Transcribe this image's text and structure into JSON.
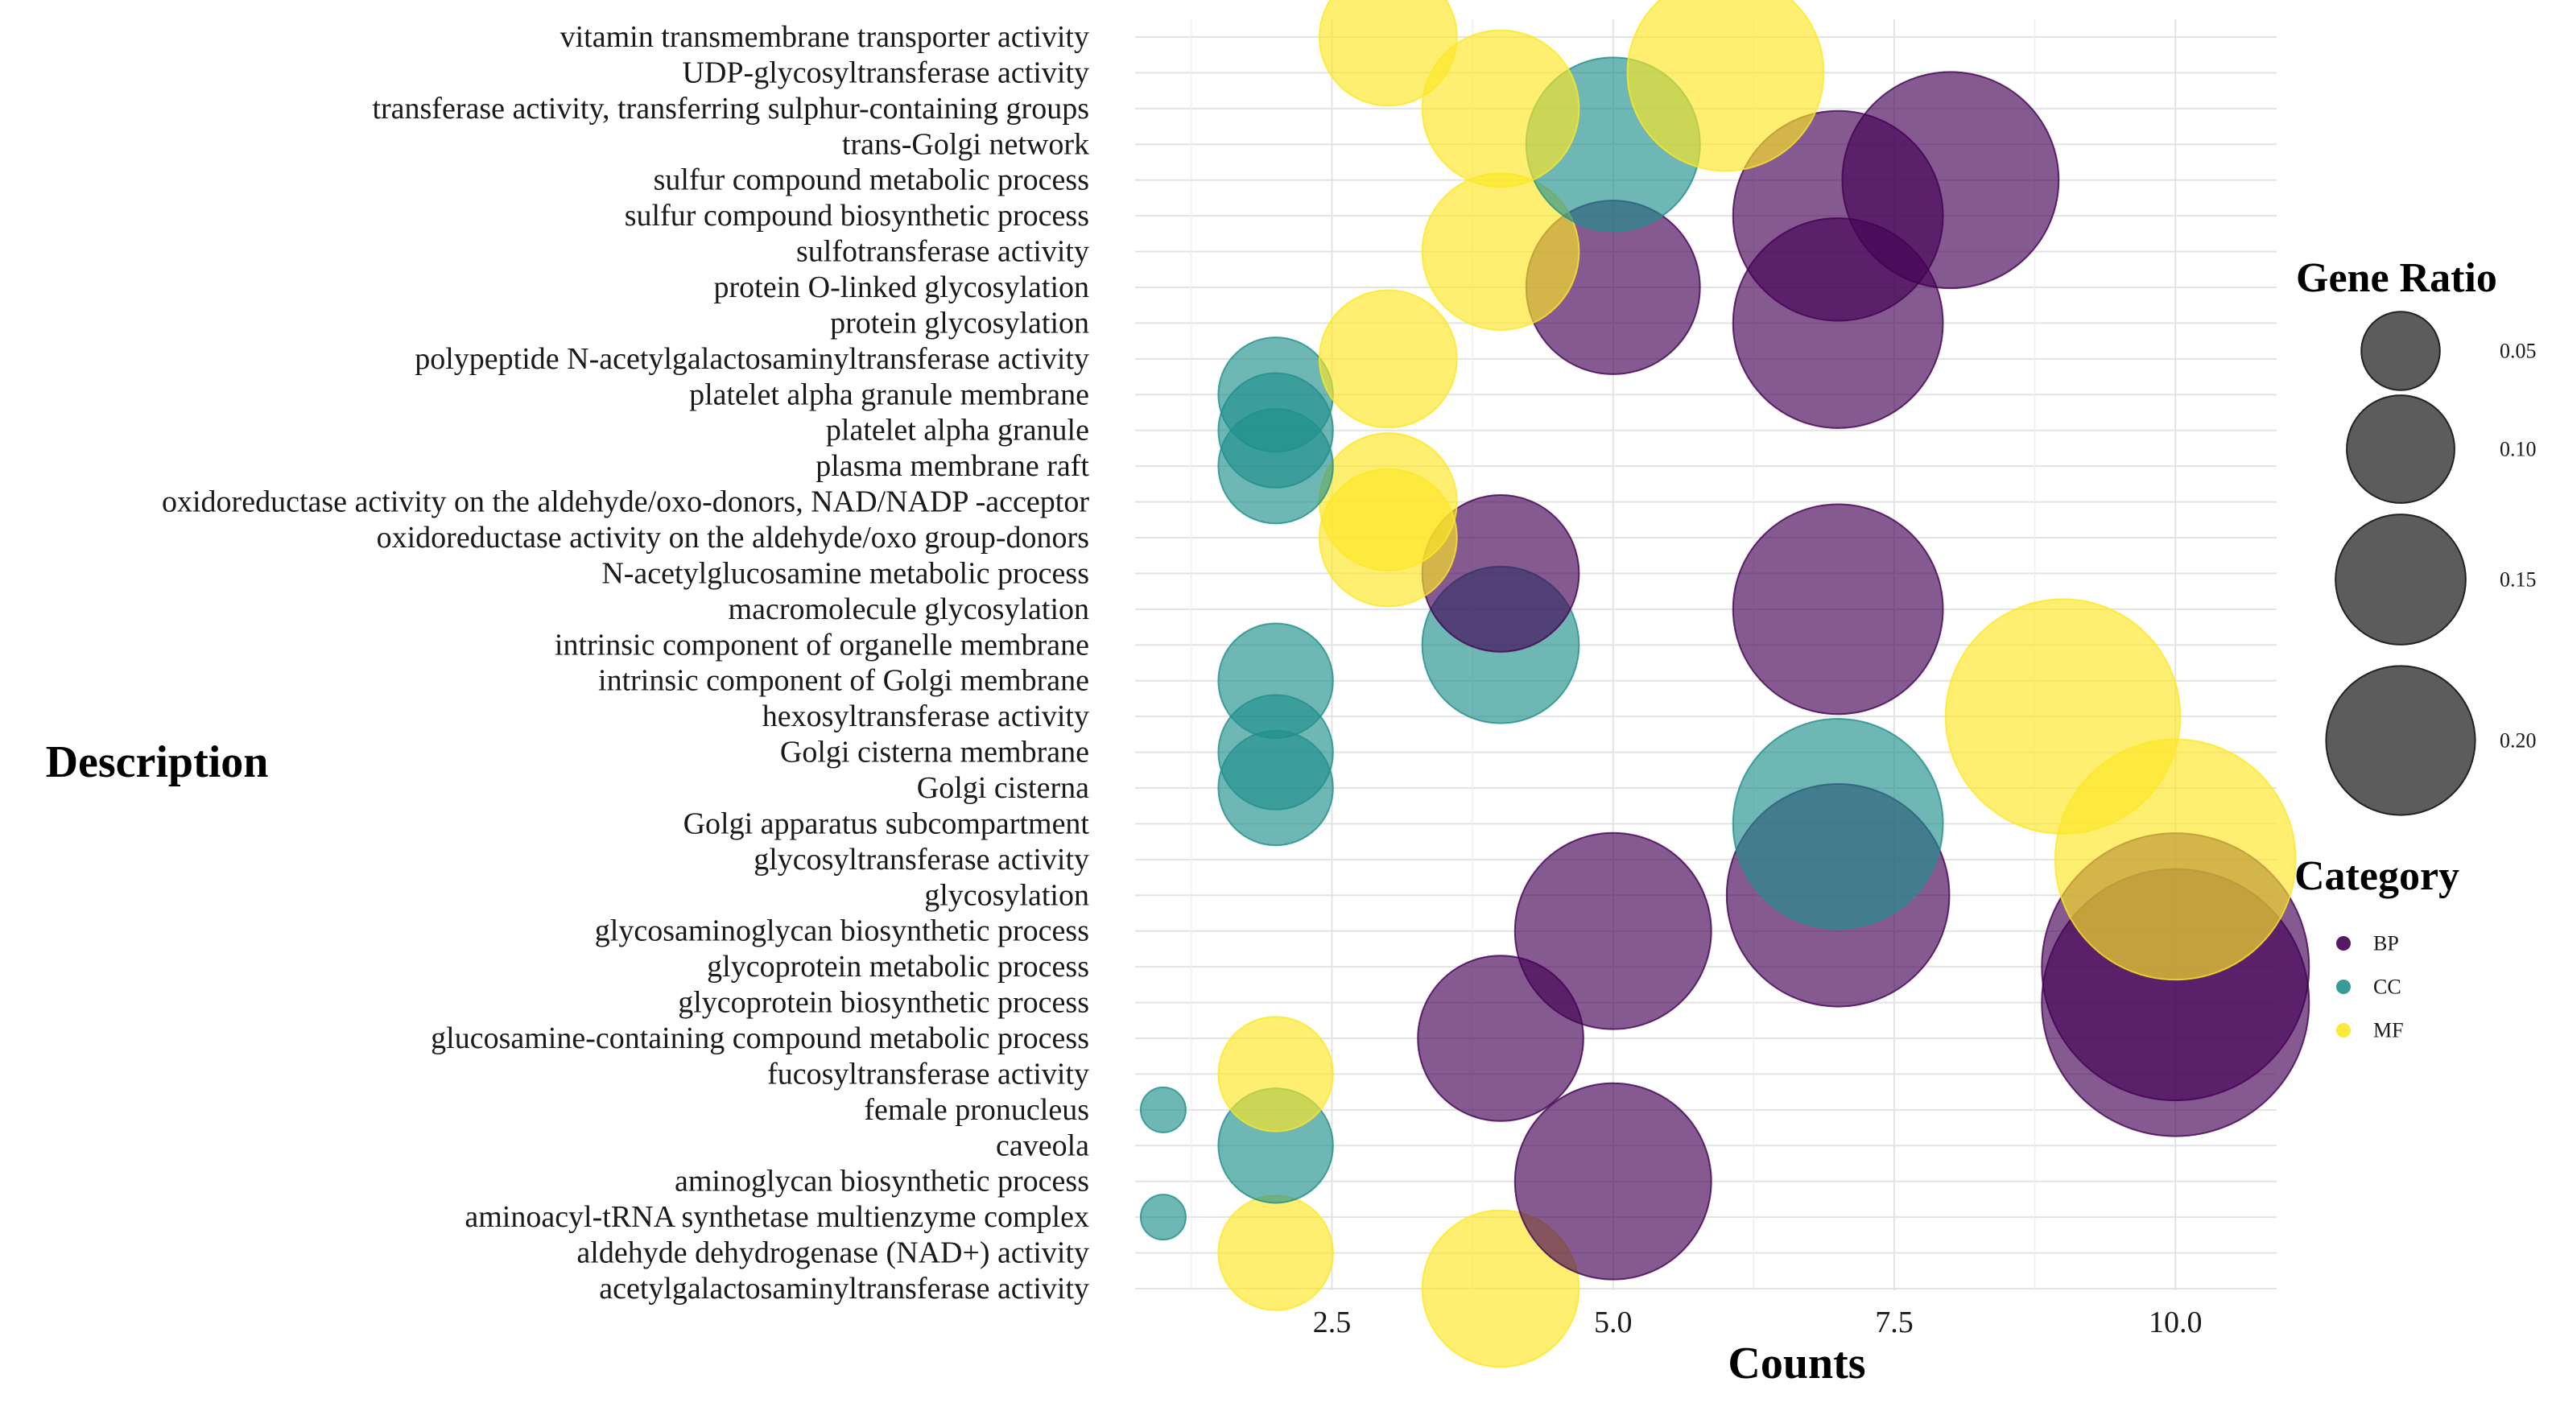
{
  "chart_data": {
    "type": "scatter",
    "subtype": "bubble",
    "xlabel": "Counts",
    "ylabel": "Description",
    "xlim": [
      0.75,
      10.9
    ],
    "x_ticks": [
      2.5,
      5.0,
      7.5,
      10.0
    ],
    "x_tick_labels": [
      "2.5",
      "5.0",
      "7.5",
      "10.0"
    ],
    "grid": true,
    "categories": [
      "acetylgalactosaminyltransferase activity",
      "aldehyde dehydrogenase (NAD+) activity",
      "aminoacyl-tRNA synthetase multienzyme complex",
      "aminoglycan biosynthetic process",
      "caveola",
      "female pronucleus",
      "fucosyltransferase activity",
      "glucosamine-containing compound metabolic process",
      "glycoprotein biosynthetic process",
      "glycoprotein metabolic process",
      "glycosaminoglycan biosynthetic process",
      "glycosylation",
      "glycosyltransferase activity",
      "Golgi apparatus subcompartment",
      "Golgi cisterna",
      "Golgi cisterna membrane",
      "hexosyltransferase activity",
      "intrinsic component of Golgi membrane",
      "intrinsic component of organelle membrane",
      "macromolecule glycosylation",
      "N-acetylglucosamine metabolic process",
      "oxidoreductase activity on the aldehyde/oxo group-donors",
      "oxidoreductase activity on the aldehyde/oxo-donors, NAD/NADP -acceptor",
      "plasma membrane raft",
      "platelet alpha granule",
      "platelet alpha granule membrane",
      "polypeptide N-acetylgalactosaminyltransferase activity",
      "protein glycosylation",
      "protein O-linked glycosylation",
      "sulfotransferase activity",
      "sulfur compound biosynthetic process",
      "sulfur compound metabolic process",
      "trans-Golgi network",
      "transferase activity, transferring sulphur-containing groups",
      "UDP-glycosyltransferase activity",
      "vitamin transmembrane transporter activity"
    ],
    "points": [
      {
        "description": "acetylgalactosaminyltransferase activity",
        "count": 4,
        "gene_ratio": 0.08,
        "category": "MF"
      },
      {
        "description": "aldehyde dehydrogenase (NAD+) activity",
        "count": 2,
        "gene_ratio": 0.04,
        "category": "MF"
      },
      {
        "description": "aminoacyl-tRNA synthetase multienzyme complex",
        "count": 1,
        "gene_ratio": 0.004,
        "category": "CC"
      },
      {
        "description": "aminoglycan biosynthetic process",
        "count": 5,
        "gene_ratio": 0.13,
        "category": "BP"
      },
      {
        "description": "caveola",
        "count": 2,
        "gene_ratio": 0.04,
        "category": "CC"
      },
      {
        "description": "female pronucleus",
        "count": 1,
        "gene_ratio": 0.004,
        "category": "CC"
      },
      {
        "description": "fucosyltransferase activity",
        "count": 2,
        "gene_ratio": 0.04,
        "category": "MF"
      },
      {
        "description": "glucosamine-containing compound metabolic process",
        "count": 4,
        "gene_ratio": 0.09,
        "category": "BP"
      },
      {
        "description": "glycoprotein biosynthetic process",
        "count": 10,
        "gene_ratio": 0.25,
        "category": "BP"
      },
      {
        "description": "glycoprotein metabolic process",
        "count": 10,
        "gene_ratio": 0.25,
        "category": "BP"
      },
      {
        "description": "glycosaminoglycan biosynthetic process",
        "count": 5,
        "gene_ratio": 0.13,
        "category": "BP"
      },
      {
        "description": "glycosylation",
        "count": 7,
        "gene_ratio": 0.17,
        "category": "BP"
      },
      {
        "description": "glycosyltransferase activity",
        "count": 10,
        "gene_ratio": 0.2,
        "category": "MF"
      },
      {
        "description": "Golgi apparatus subcompartment",
        "count": 7,
        "gene_ratio": 0.15,
        "category": "CC"
      },
      {
        "description": "Golgi cisterna",
        "count": 2,
        "gene_ratio": 0.04,
        "category": "CC"
      },
      {
        "description": "Golgi cisterna membrane",
        "count": 2,
        "gene_ratio": 0.04,
        "category": "CC"
      },
      {
        "description": "hexosyltransferase activity",
        "count": 9,
        "gene_ratio": 0.19,
        "category": "MF"
      },
      {
        "description": "intrinsic component of Golgi membrane",
        "count": 2,
        "gene_ratio": 0.04,
        "category": "CC"
      },
      {
        "description": "intrinsic component of organelle membrane",
        "count": 4,
        "gene_ratio": 0.08,
        "category": "CC"
      },
      {
        "description": "macromolecule glycosylation",
        "count": 7,
        "gene_ratio": 0.15,
        "category": "BP"
      },
      {
        "description": "N-acetylglucosamine metabolic process",
        "count": 4,
        "gene_ratio": 0.08,
        "category": "BP"
      },
      {
        "description": "oxidoreductase activity on the aldehyde/oxo group-donors",
        "count": 3,
        "gene_ratio": 0.06,
        "category": "MF"
      },
      {
        "description": "oxidoreductase activity on the aldehyde/oxo-donors, NAD/NADP -acceptor",
        "count": 3,
        "gene_ratio": 0.06,
        "category": "MF"
      },
      {
        "description": "plasma membrane raft",
        "count": 2,
        "gene_ratio": 0.04,
        "category": "CC"
      },
      {
        "description": "platelet alpha granule",
        "count": 2,
        "gene_ratio": 0.04,
        "category": "CC"
      },
      {
        "description": "platelet alpha granule membrane",
        "count": 2,
        "gene_ratio": 0.04,
        "category": "CC"
      },
      {
        "description": "polypeptide N-acetylgalactosaminyltransferase activity",
        "count": 3,
        "gene_ratio": 0.06,
        "category": "MF"
      },
      {
        "description": "protein glycosylation",
        "count": 7,
        "gene_ratio": 0.15,
        "category": "BP"
      },
      {
        "description": "protein O-linked glycosylation",
        "count": 5,
        "gene_ratio": 0.1,
        "category": "BP"
      },
      {
        "description": "sulfotransferase activity",
        "count": 4,
        "gene_ratio": 0.08,
        "category": "MF"
      },
      {
        "description": "sulfur compound biosynthetic process",
        "count": 7,
        "gene_ratio": 0.15,
        "category": "BP"
      },
      {
        "description": "sulfur compound metabolic process",
        "count": 8,
        "gene_ratio": 0.16,
        "category": "BP"
      },
      {
        "description": "trans-Golgi network",
        "count": 5,
        "gene_ratio": 0.1,
        "category": "CC"
      },
      {
        "description": "transferase activity, transferring sulphur-containing groups",
        "count": 4,
        "gene_ratio": 0.08,
        "category": "MF"
      },
      {
        "description": "UDP-glycosyltransferase activity",
        "count": 6,
        "gene_ratio": 0.13,
        "category": "MF"
      },
      {
        "description": "vitamin transmembrane transporter activity",
        "count": 3,
        "gene_ratio": 0.06,
        "category": "MF"
      }
    ],
    "size_legend": {
      "title": "Gene Ratio",
      "values": [
        0.05,
        0.1,
        0.15,
        0.2
      ],
      "labels": [
        "0.05",
        "0.10",
        "0.15",
        "0.20"
      ]
    },
    "color_legend": {
      "title": "Category",
      "entries": [
        {
          "label": "BP",
          "color": "#440154"
        },
        {
          "label": "CC",
          "color": "#21908C"
        },
        {
          "label": "MF",
          "color": "#FDE725"
        }
      ]
    },
    "fill_alpha": 0.65,
    "legend_position": "right"
  }
}
